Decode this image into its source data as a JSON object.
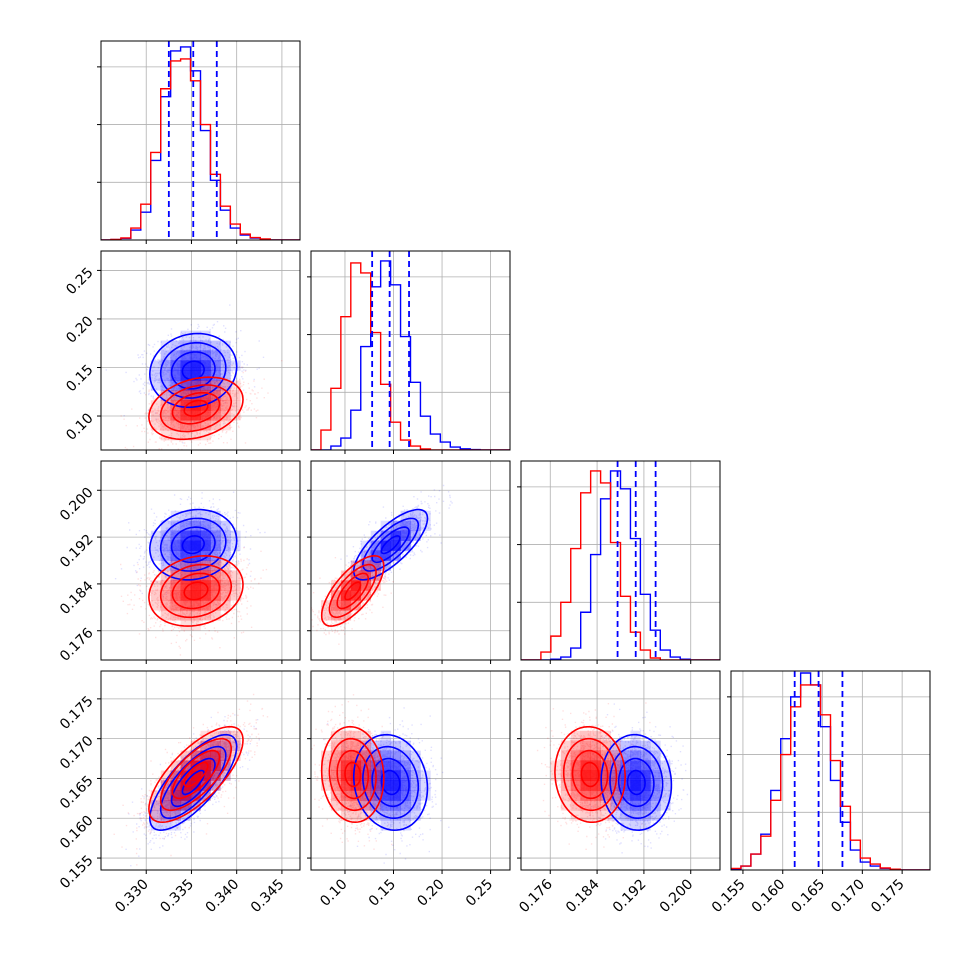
{
  "chart_data": {
    "type": "corner",
    "title": "",
    "grid": true,
    "series": [
      {
        "color": "#0000ff"
      },
      {
        "color": "#ff0000"
      }
    ],
    "parameters": [
      {
        "index": 0,
        "range": [
          0.325,
          0.347
        ],
        "ticks": [
          "0.330",
          "0.335",
          "0.340",
          "0.345"
        ],
        "tick_values": [
          0.33,
          0.335,
          0.34,
          0.345
        ]
      },
      {
        "index": 1,
        "range": [
          0.065,
          0.27
        ],
        "ticks": [
          "0.10",
          "0.15",
          "0.20",
          "0.25"
        ],
        "tick_values": [
          0.1,
          0.15,
          0.2,
          0.25
        ]
      },
      {
        "index": 2,
        "range": [
          0.171,
          0.205
        ],
        "ticks": [
          "0.176",
          "0.184",
          "0.192",
          "0.200"
        ],
        "tick_values": [
          0.176,
          0.184,
          0.192,
          0.2
        ]
      },
      {
        "index": 3,
        "range": [
          0.1535,
          0.1785
        ],
        "ticks": [
          "0.155",
          "0.160",
          "0.165",
          "0.170",
          "0.175"
        ],
        "tick_values": [
          0.155,
          0.16,
          0.165,
          0.17,
          0.175
        ]
      }
    ],
    "diagonal_histograms": [
      {
        "param": 0,
        "bins": [
          0.325,
          0.347
        ],
        "nbins": 20,
        "quantile_lines": [
          0.3325,
          0.3352,
          0.3378
        ],
        "blue": [
          0,
          0.002,
          0.008,
          0.05,
          0.14,
          0.4,
          0.72,
          0.95,
          0.97,
          0.85,
          0.55,
          0.3,
          0.15,
          0.06,
          0.025,
          0.01,
          0.004,
          0,
          0,
          0
        ],
        "red": [
          0,
          0.003,
          0.01,
          0.06,
          0.18,
          0.44,
          0.76,
          0.9,
          0.91,
          0.8,
          0.58,
          0.33,
          0.17,
          0.08,
          0.03,
          0.012,
          0.005,
          0,
          0,
          0
        ]
      },
      {
        "param": 1,
        "bins": [
          0.065,
          0.27
        ],
        "nbins": 20,
        "quantile_lines": [
          0.128,
          0.146,
          0.166
        ],
        "blue": [
          0,
          0,
          0.02,
          0.06,
          0.2,
          0.52,
          0.82,
          0.95,
          0.83,
          0.57,
          0.34,
          0.17,
          0.08,
          0.04,
          0.015,
          0.006,
          0.002,
          0,
          0,
          0
        ],
        "red": [
          0,
          0.1,
          0.31,
          0.67,
          0.94,
          0.89,
          0.59,
          0.33,
          0.14,
          0.05,
          0.02,
          0.005,
          0,
          0,
          0,
          0,
          0,
          0,
          0,
          0
        ]
      },
      {
        "param": 2,
        "bins": [
          0.171,
          0.205
        ],
        "nbins": 20,
        "quantile_lines": [
          0.1875,
          0.1906,
          0.194
        ],
        "blue": [
          0,
          0,
          0,
          0.004,
          0.015,
          0.06,
          0.24,
          0.53,
          0.81,
          0.95,
          0.86,
          0.61,
          0.33,
          0.15,
          0.05,
          0.015,
          0.004,
          0,
          0,
          0
        ],
        "red": [
          0,
          0,
          0.04,
          0.12,
          0.29,
          0.56,
          0.84,
          0.95,
          0.89,
          0.59,
          0.32,
          0.14,
          0.05,
          0.01,
          0,
          0,
          0,
          0,
          0,
          0
        ]
      },
      {
        "param": 3,
        "bins": [
          0.1535,
          0.1785
        ],
        "nbins": 20,
        "quantile_lines": [
          0.1615,
          0.1645,
          0.1675
        ],
        "blue": [
          0.005,
          0.02,
          0.08,
          0.18,
          0.4,
          0.66,
          0.87,
          0.99,
          0.93,
          0.72,
          0.45,
          0.24,
          0.1,
          0.04,
          0.02,
          0.008,
          0.003,
          0,
          0,
          0
        ],
        "red": [
          0.008,
          0.02,
          0.08,
          0.17,
          0.35,
          0.58,
          0.82,
          0.93,
          0.93,
          0.78,
          0.55,
          0.32,
          0.15,
          0.06,
          0.03,
          0.01,
          0.004,
          0,
          0,
          0
        ]
      }
    ],
    "pair_gaussians": [
      {
        "row": 1,
        "col": 0,
        "blue": {
          "mx": 0.3352,
          "my": 0.147,
          "sx": 0.0024,
          "sy": 0.019,
          "rho": 0.1
        },
        "red": {
          "mx": 0.3355,
          "my": 0.108,
          "sx": 0.0026,
          "sy": 0.016,
          "rho": 0.28
        }
      },
      {
        "row": 2,
        "col": 0,
        "blue": {
          "mx": 0.3352,
          "my": 0.1907,
          "sx": 0.0024,
          "sy": 0.003,
          "rho": 0.12
        },
        "red": {
          "mx": 0.3355,
          "my": 0.1828,
          "sx": 0.0026,
          "sy": 0.003,
          "rho": 0.18
        }
      },
      {
        "row": 2,
        "col": 1,
        "blue": {
          "mx": 0.147,
          "my": 0.1907,
          "sx": 0.019,
          "sy": 0.003,
          "rho": 0.75
        },
        "red": {
          "mx": 0.108,
          "my": 0.1828,
          "sx": 0.016,
          "sy": 0.003,
          "rho": 0.7
        }
      },
      {
        "row": 3,
        "col": 0,
        "blue": {
          "mx": 0.3352,
          "my": 0.1645,
          "sx": 0.0024,
          "sy": 0.003,
          "rho": 0.75
        },
        "red": {
          "mx": 0.3355,
          "my": 0.1655,
          "sx": 0.0026,
          "sy": 0.003,
          "rho": 0.72
        }
      },
      {
        "row": 3,
        "col": 1,
        "blue": {
          "mx": 0.147,
          "my": 0.1645,
          "sx": 0.019,
          "sy": 0.003,
          "rho": -0.12
        },
        "red": {
          "mx": 0.108,
          "my": 0.1655,
          "sx": 0.016,
          "sy": 0.003,
          "rho": -0.08
        }
      },
      {
        "row": 3,
        "col": 2,
        "blue": {
          "mx": 0.1907,
          "my": 0.1645,
          "sx": 0.003,
          "sy": 0.003,
          "rho": -0.05
        },
        "red": {
          "mx": 0.1828,
          "my": 0.1655,
          "sx": 0.003,
          "sy": 0.003,
          "rho": -0.05
        }
      }
    ],
    "contour_levels_sigma": [
      0.5,
      1.0,
      1.5,
      2.0
    ]
  }
}
